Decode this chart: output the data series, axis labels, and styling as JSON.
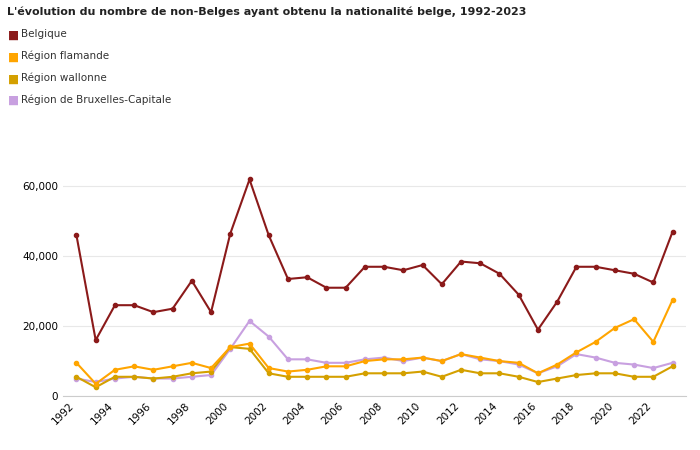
{
  "title": "L'évolution du nombre de non-Belges ayant obtenu la nationalité belge, 1992-2023",
  "years": [
    1992,
    1993,
    1994,
    1995,
    1996,
    1997,
    1998,
    1999,
    2000,
    2001,
    2002,
    2003,
    2004,
    2005,
    2006,
    2007,
    2008,
    2009,
    2010,
    2011,
    2012,
    2013,
    2014,
    2015,
    2016,
    2017,
    2018,
    2019,
    2020,
    2021,
    2022,
    2023
  ],
  "belgique": [
    46000,
    16000,
    26000,
    26000,
    24000,
    25000,
    33000,
    24000,
    46500,
    62000,
    46000,
    33500,
    34000,
    31000,
    31000,
    37000,
    37000,
    36000,
    37500,
    32000,
    38500,
    38000,
    35000,
    29000,
    19000,
    27000,
    37000,
    37000,
    36000,
    35000,
    32500,
    47000
  ],
  "flamande": [
    9500,
    3500,
    7500,
    8500,
    7500,
    8500,
    9500,
    8000,
    14000,
    15000,
    8000,
    7000,
    7500,
    8500,
    8500,
    10000,
    10500,
    10500,
    11000,
    10000,
    12000,
    11000,
    10000,
    9500,
    6500,
    9000,
    12500,
    15500,
    19500,
    22000,
    15500,
    27500
  ],
  "wallonne": [
    5500,
    2500,
    5500,
    5500,
    5000,
    5500,
    6500,
    7000,
    14000,
    13500,
    6500,
    5500,
    5500,
    5500,
    5500,
    6500,
    6500,
    6500,
    7000,
    5500,
    7500,
    6500,
    6500,
    5500,
    4000,
    5000,
    6000,
    6500,
    6500,
    5500,
    5500,
    8500
  ],
  "bruxelles": [
    5000,
    4000,
    5000,
    5500,
    5000,
    5000,
    5500,
    6000,
    13500,
    21500,
    17000,
    10500,
    10500,
    9500,
    9500,
    10500,
    11000,
    10000,
    11000,
    10000,
    12000,
    10500,
    10000,
    9000,
    6500,
    8500,
    12000,
    11000,
    9500,
    9000,
    8000,
    9500
  ],
  "color_belgique": "#8B1A1A",
  "color_flamande": "#FFA500",
  "color_wallonne": "#D4A000",
  "color_bruxelles": "#C8A0E0",
  "legend_labels": [
    "Belgique",
    "Région flamande",
    "Région wallonne",
    "Région de Bruxelles-Capitale"
  ],
  "legend_colors": [
    "#8B1A1A",
    "#FFA500",
    "#D4A000",
    "#C8A0E0"
  ],
  "ylim": [
    0,
    67000
  ],
  "yticks": [
    0,
    20000,
    40000,
    60000
  ],
  "background_color": "#FFFFFF",
  "title_fontsize": 8.0,
  "tick_fontsize": 7.5,
  "marker_size": 3.0,
  "linewidth": 1.5
}
